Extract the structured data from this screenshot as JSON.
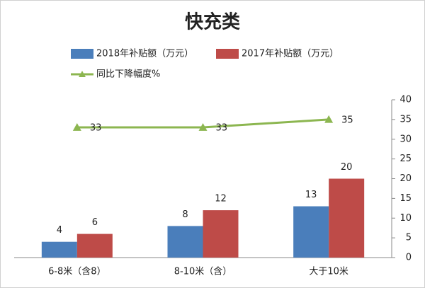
{
  "chart_data": {
    "type": "bar",
    "title": "快充类",
    "categories": [
      "6-8米（含8）",
      "8-10米（含）",
      "大于10米"
    ],
    "series": [
      {
        "name": "2018年补贴额（万元）",
        "color": "#4a7ebb",
        "values": [
          4,
          8,
          13
        ]
      },
      {
        "name": "2017年补贴额（万元）",
        "color": "#be4b48",
        "values": [
          6,
          12,
          20
        ]
      },
      {
        "name": "同比下降幅度%",
        "color": "#8cb650",
        "type": "line",
        "values": [
          33,
          33,
          35
        ]
      }
    ],
    "ylim": [
      0,
      40
    ],
    "yticks": [
      0,
      5,
      10,
      15,
      20,
      25,
      30,
      35,
      40
    ],
    "axis_side": "right"
  }
}
